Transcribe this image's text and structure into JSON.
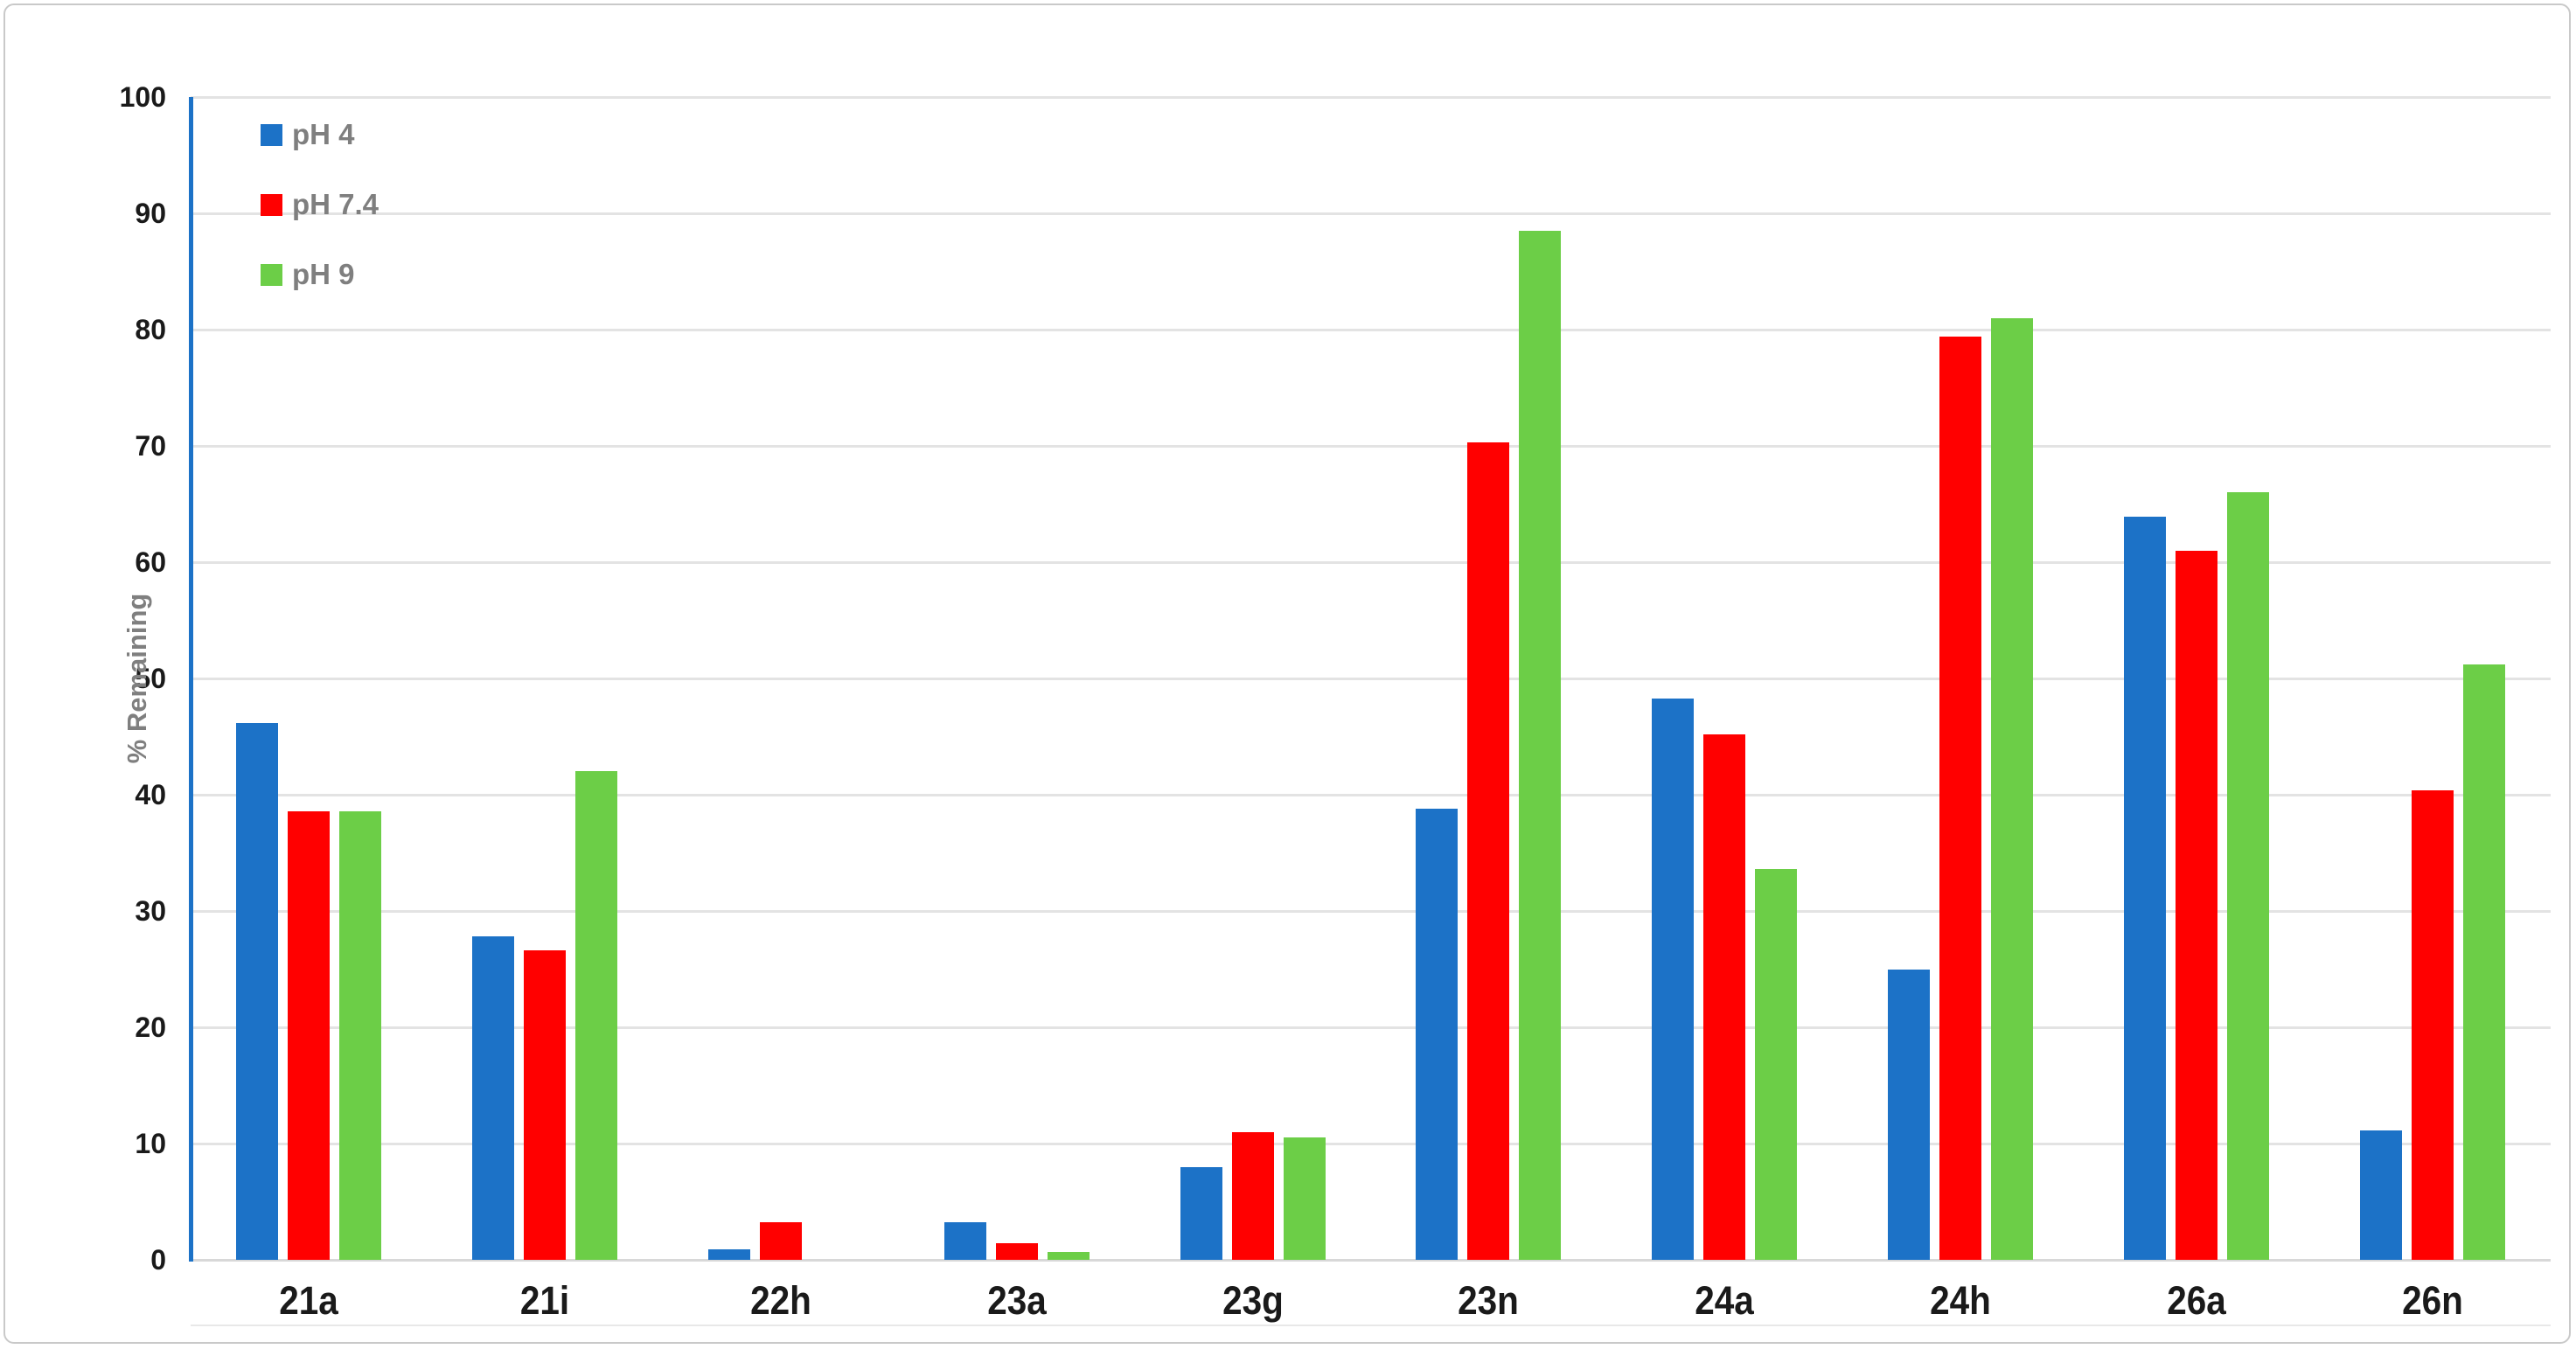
{
  "chart_data": {
    "type": "bar",
    "title": "",
    "xlabel": "",
    "ylabel": "% Remaining",
    "ylim": [
      0,
      100
    ],
    "yticks": [
      0,
      10,
      20,
      30,
      40,
      50,
      60,
      70,
      80,
      90,
      100
    ],
    "grid": true,
    "legend_position": "top-left-inside",
    "categories": [
      "21a",
      "21i",
      "22h",
      "23a",
      "23g",
      "23n",
      "24a",
      "24h",
      "26a",
      "26n"
    ],
    "series": [
      {
        "name": "pH 4",
        "color": "#1C72C7",
        "values": [
          46.2,
          27.8,
          0.9,
          3.2,
          8.0,
          38.8,
          48.3,
          25.0,
          63.9,
          11.1
        ]
      },
      {
        "name": "pH 7.4",
        "color": "#FF0000",
        "values": [
          38.6,
          26.6,
          3.2,
          1.4,
          11.0,
          70.3,
          45.2,
          79.4,
          61.0,
          40.4
        ]
      },
      {
        "name": "pH 9",
        "color": "#6CCE47",
        "values": [
          38.6,
          42.0,
          0.0,
          0.7,
          10.5,
          88.5,
          33.6,
          81.0,
          66.0,
          51.2
        ]
      }
    ]
  },
  "colors": {
    "axis_line": "#1C72C7",
    "gridline": "#E3E3E3",
    "baseline": "#D8D8D8",
    "bottom_rule": "#E8E8E8",
    "tick_text": "#1A1A1A",
    "secondary_text": "#7F7F7F",
    "frame_border": "#C9C9C9",
    "background": "#FFFFFF"
  }
}
